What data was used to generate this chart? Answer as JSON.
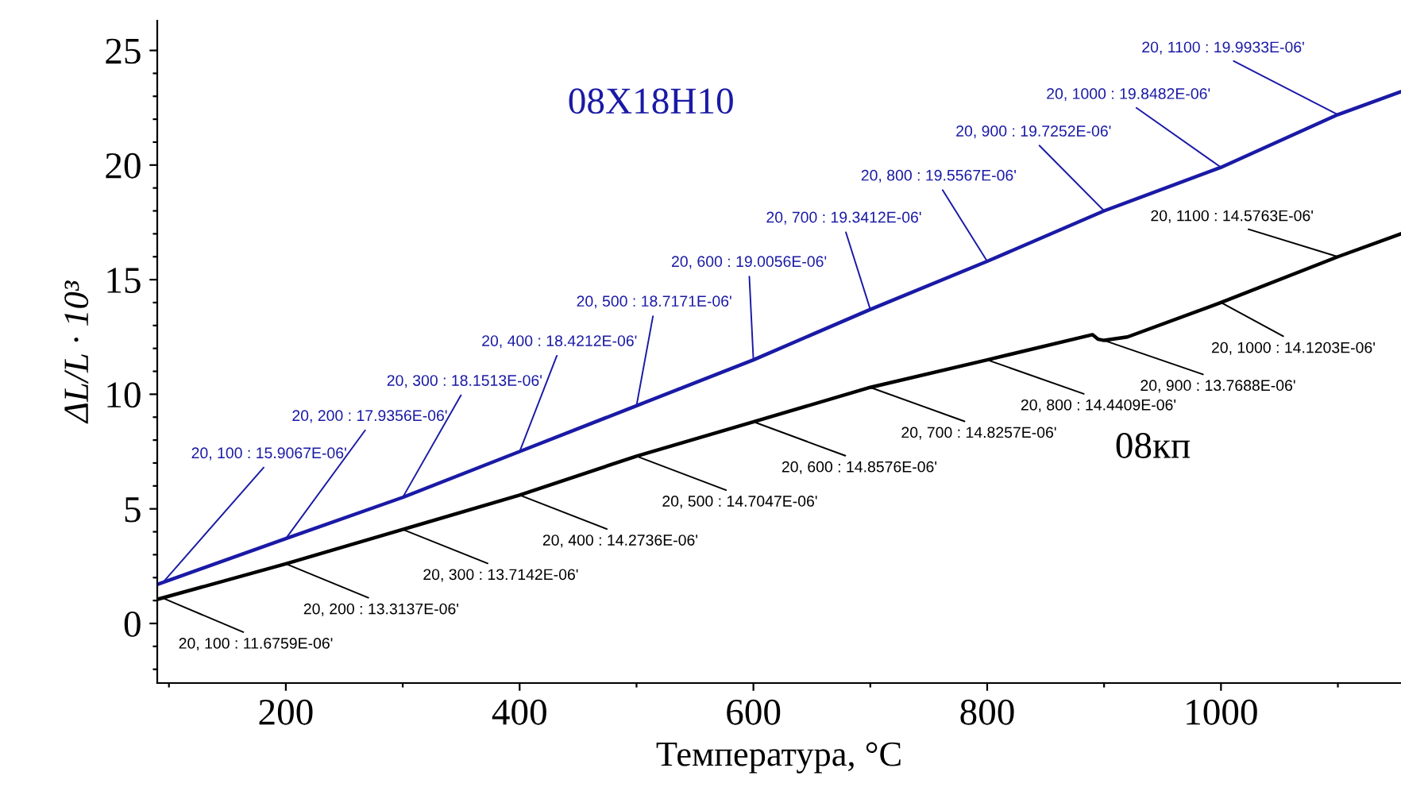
{
  "chart_data": {
    "type": "line",
    "xlabel": "Температура, °C",
    "ylabel": "ΔL/L · 10³",
    "xlim": [
      90,
      1154
    ],
    "ylim": [
      -2.6,
      26.3
    ],
    "xticks": [
      {
        "value": 100,
        "label": null
      },
      200,
      {
        "value": 300,
        "label": null
      },
      400,
      {
        "value": 500,
        "label": null
      },
      600,
      {
        "value": 700,
        "label": null
      },
      800,
      {
        "value": 900,
        "label": null
      },
      1000,
      {
        "value": 1100,
        "label": null
      }
    ],
    "yticks": [
      {
        "value": -2,
        "label": null
      },
      {
        "value": -1,
        "label": null
      },
      0,
      {
        "value": 1,
        "label": null
      },
      {
        "value": 2,
        "label": null
      },
      {
        "value": 3,
        "label": null
      },
      {
        "value": 4,
        "label": null
      },
      5,
      {
        "value": 6,
        "label": null
      },
      {
        "value": 7,
        "label": null
      },
      {
        "value": 8,
        "label": null
      },
      {
        "value": 9,
        "label": null
      },
      10,
      {
        "value": 11,
        "label": null
      },
      {
        "value": 12,
        "label": null
      },
      {
        "value": 13,
        "label": null
      },
      {
        "value": 14,
        "label": null
      },
      15,
      {
        "value": 16,
        "label": null
      },
      {
        "value": 17,
        "label": null
      },
      {
        "value": 18,
        "label": null
      },
      {
        "value": 19,
        "label": null
      },
      20,
      {
        "value": 21,
        "label": null
      },
      {
        "value": 22,
        "label": null
      },
      {
        "value": 23,
        "label": null
      },
      {
        "value": 24,
        "label": null
      },
      25
    ],
    "grid": false,
    "legend": false,
    "marker": "none",
    "line_style": "solid",
    "series": [
      {
        "name": "08Х18Н10",
        "color": "#1a1aa6",
        "x": [
          90,
          200,
          300,
          400,
          500,
          600,
          700,
          800,
          900,
          1000,
          1100,
          1154
        ],
        "values": [
          1.7,
          3.7,
          5.5,
          7.5,
          9.5,
          11.5,
          13.7,
          15.8,
          18.0,
          19.9,
          22.2,
          23.2
        ]
      },
      {
        "name": "08кп",
        "color": "#000000",
        "x": [
          90,
          200,
          300,
          400,
          500,
          600,
          700,
          800,
          890,
          895,
          900,
          920,
          1000,
          1100,
          1154
        ],
        "values": [
          1.05,
          2.6,
          4.1,
          5.6,
          7.3,
          8.8,
          10.3,
          11.5,
          12.6,
          12.4,
          12.35,
          12.5,
          14.0,
          16.0,
          17.0
        ]
      }
    ],
    "annotations": [
      {
        "text": "20, 100 : 15.9067E-06'",
        "x": 95,
        "y": 1.8
      },
      {
        "text": "20, 200 : 17.9356E-06'",
        "x": 200,
        "y": 3.7
      },
      {
        "text": "20, 300 : 18.1513E-06'",
        "x": 300,
        "y": 5.5
      },
      {
        "text": "20, 400 : 18.4212E-06'",
        "x": 400,
        "y": 7.5
      },
      {
        "text": "20, 500 : 18.7171E-06'",
        "x": 500,
        "y": 9.5
      },
      {
        "text": "20, 600 : 19.0056E-06'",
        "x": 600,
        "y": 11.5
      },
      {
        "text": "20, 700 : 19.3412E-06'",
        "x": 700,
        "y": 13.7
      },
      {
        "text": "20, 800 : 19.5567E-06'",
        "x": 800,
        "y": 15.8
      },
      {
        "text": "20, 900 : 19.7252E-06'",
        "x": 900,
        "y": 18.0
      },
      {
        "text": "20, 1000 : 19.8482E-06'",
        "x": 1000,
        "y": 19.9
      },
      {
        "text": "20, 1100 : 19.9933E-06'",
        "x": 1100,
        "y": 22.2
      },
      {
        "text": "20, 100 : 11.6759E-06'",
        "x": 95,
        "y": 1.1
      },
      {
        "text": "20, 200 : 13.3137E-06'",
        "x": 200,
        "y": 2.6
      },
      {
        "text": "20, 300 : 13.7142E-06'",
        "x": 300,
        "y": 4.1
      },
      {
        "text": "20, 400 : 14.2736E-06'",
        "x": 400,
        "y": 5.6
      },
      {
        "text": "20, 500 : 14.7047E-06'",
        "x": 500,
        "y": 7.3
      },
      {
        "text": "20, 600 : 14.8576E-06'",
        "x": 600,
        "y": 8.8
      },
      {
        "text": "20, 700 : 14.8257E-06'",
        "x": 700,
        "y": 10.3
      },
      {
        "text": "20, 800 : 14.4409E-06'",
        "x": 800,
        "y": 11.5
      },
      {
        "text": "20, 900 : 13.7688E-06'",
        "x": 900,
        "y": 12.35
      },
      {
        "text": "20, 1000 : 14.1203E-06'",
        "x": 1000,
        "y": 14.0
      },
      {
        "text": "20, 1100 : 14.5763E-06'",
        "x": 1100,
        "y": 16.0
      }
    ]
  }
}
